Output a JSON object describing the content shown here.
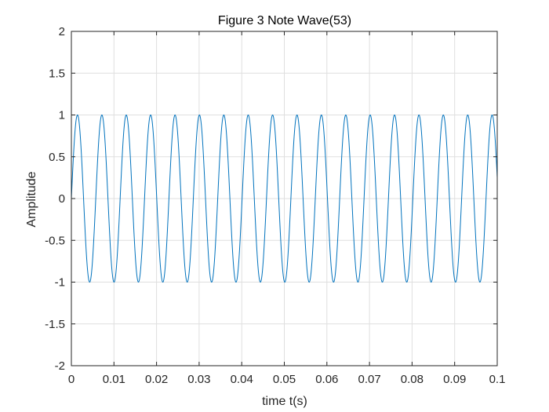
{
  "chart_data": {
    "type": "line",
    "title": "Figure 3 Note Wave(53)",
    "xlabel": "time t(s)",
    "ylabel": "Amplitude",
    "xlim": [
      0,
      0.1
    ],
    "ylim": [
      -2,
      2
    ],
    "xticks": [
      0,
      0.01,
      0.02,
      0.03,
      0.04,
      0.05,
      0.06,
      0.07,
      0.08,
      0.09,
      0.1
    ],
    "xtick_labels": [
      "0",
      "0.01",
      "0.02",
      "0.03",
      "0.04",
      "0.05",
      "0.06",
      "0.07",
      "0.08",
      "0.09",
      "0.1"
    ],
    "yticks": [
      2,
      1.5,
      1,
      0.5,
      0,
      -0.5,
      -1,
      -1.5,
      -2
    ],
    "ytick_labels": [
      "2",
      "1.5",
      "1",
      "0.5",
      "0",
      "-0.5",
      "-1",
      "-1.5",
      "-2"
    ],
    "grid": true,
    "series": [
      {
        "function": "sin(2*pi*f*t)",
        "amplitude": 1,
        "frequency_hz": 174.6,
        "phase": 0,
        "t_start": 0,
        "t_end": 0.1,
        "color": "#0072BD"
      }
    ]
  }
}
